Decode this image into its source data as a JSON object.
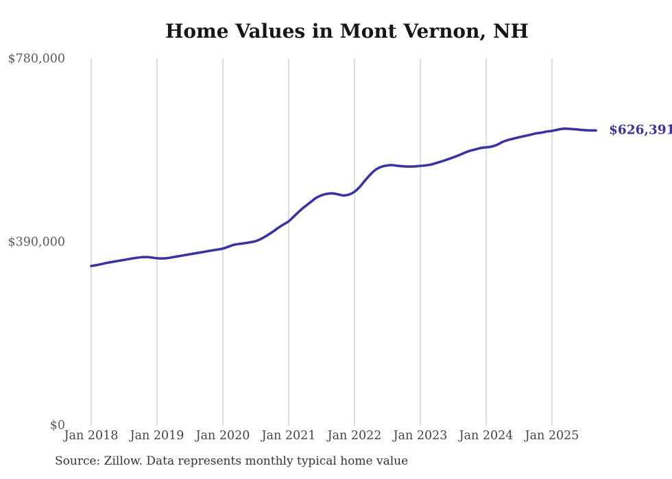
{
  "chart_data": {
    "type": "line",
    "title": "Home Values in Mont Vernon, NH",
    "source_note": "Source: Zillow. Data represents monthly typical home value",
    "end_label": "$626,391",
    "final_value": 626391,
    "line_color": "#3a34a3",
    "grid_color": "#c9c9c9",
    "y_label_color": "#5a5a5a",
    "x_label_color": "#444444",
    "ylim": [
      0,
      780000
    ],
    "grid": "vertical-only",
    "legend": "none",
    "x_unit": "month",
    "x_range": [
      "Jan 2018",
      "Sep 2025"
    ],
    "y_ticks": [
      {
        "label": "$780,000",
        "value": 780000
      },
      {
        "label": "$390,000",
        "value": 390000
      },
      {
        "label": "$0",
        "value": 0
      }
    ],
    "x_ticks": [
      {
        "label": "Jan 2018",
        "month_index": 0
      },
      {
        "label": "Jan 2019",
        "month_index": 12
      },
      {
        "label": "Jan 2020",
        "month_index": 24
      },
      {
        "label": "Jan 2021",
        "month_index": 36
      },
      {
        "label": "Jan 2022",
        "month_index": 48
      },
      {
        "label": "Jan 2023",
        "month_index": 60
      },
      {
        "label": "Jan 2024",
        "month_index": 72
      },
      {
        "label": "Jan 2025",
        "month_index": 84
      }
    ],
    "values": [
      338000,
      340000,
      342500,
      345000,
      347000,
      349000,
      351000,
      353000,
      355000,
      356500,
      357000,
      356000,
      354500,
      354000,
      355000,
      357000,
      359000,
      361000,
      363000,
      365000,
      367000,
      369000,
      371000,
      373000,
      375000,
      379000,
      383000,
      385000,
      386500,
      388500,
      391000,
      396000,
      402500,
      410000,
      418500,
      426000,
      433000,
      444000,
      455000,
      465000,
      474000,
      483000,
      488500,
      491500,
      492500,
      490500,
      488000,
      490000,
      496000,
      507000,
      521000,
      534000,
      544000,
      549500,
      552000,
      552500,
      551000,
      550000,
      549500,
      550000,
      551000,
      552000,
      554000,
      557500,
      561000,
      565000,
      569000,
      573500,
      578500,
      583000,
      586000,
      589000,
      590500,
      592000,
      596000,
      602000,
      606000,
      609000,
      612000,
      614500,
      617000,
      620000,
      621500,
      624000,
      625500,
      628000,
      630000,
      630000,
      629000,
      628000,
      627000,
      626500,
      626391
    ]
  }
}
